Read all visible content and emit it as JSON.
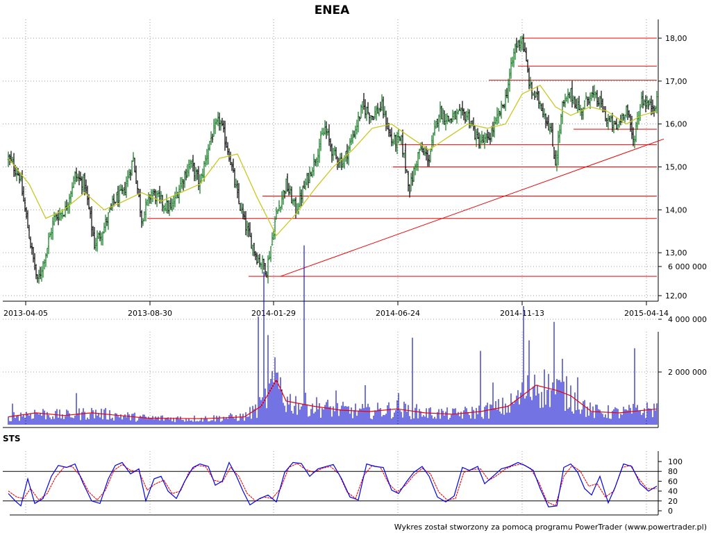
{
  "title": "ENEA",
  "footer": "Wykres został stworzony za pomocą programu PowerTrader (www.powertrader.pl)",
  "colors": {
    "price_bar_up": "#0a7a1a",
    "price_bar_down": "#000000",
    "moving_average": "#c8c820",
    "support_lines": "#ee0000",
    "volume_bars": "#0000cc",
    "volume_average": "#ee0000",
    "sts_fast": "#0000ee",
    "sts_slow": "#ee0000",
    "grid": "#999999"
  },
  "chart_data": [
    {
      "type": "candlestick-bars",
      "panel": "price",
      "title": "ENEA",
      "x_tick_labels": [
        "2013-04-05",
        "2013-08-30",
        "2014-01-29",
        "2014-06-24",
        "2014-11-13",
        "2015-04-14"
      ],
      "y_tick_labels": [
        "12,00",
        "13,00",
        "14,00",
        "15,00",
        "16,00",
        "17,00",
        "18,00"
      ],
      "ylim": [
        12.0,
        18.3
      ],
      "grid": true,
      "close_path": [
        [
          0,
          15.2
        ],
        [
          8,
          14.8
        ],
        [
          16,
          13.2
        ],
        [
          21,
          12.3
        ],
        [
          27,
          13.0
        ],
        [
          33,
          13.8
        ],
        [
          41,
          14.0
        ],
        [
          48,
          14.8
        ],
        [
          55,
          14.6
        ],
        [
          62,
          13.2
        ],
        [
          69,
          13.6
        ],
        [
          76,
          14.2
        ],
        [
          83,
          14.4
        ],
        [
          90,
          15.2
        ],
        [
          96,
          13.8
        ],
        [
          103,
          14.4
        ],
        [
          110,
          14.2
        ],
        [
          117,
          14.0
        ],
        [
          124,
          14.6
        ],
        [
          131,
          15.1
        ],
        [
          138,
          14.6
        ],
        [
          145,
          15.6
        ],
        [
          152,
          16.1
        ],
        [
          159,
          15.3
        ],
        [
          165,
          14.3
        ],
        [
          172,
          13.5
        ],
        [
          179,
          12.9
        ],
        [
          186,
          12.6
        ],
        [
          193,
          13.9
        ],
        [
          200,
          14.6
        ],
        [
          207,
          14.0
        ],
        [
          214,
          14.6
        ],
        [
          221,
          15.2
        ],
        [
          228,
          15.9
        ],
        [
          234,
          15.3
        ],
        [
          241,
          15.1
        ],
        [
          248,
          15.7
        ],
        [
          255,
          16.4
        ],
        [
          262,
          16.2
        ],
        [
          269,
          16.4
        ],
        [
          276,
          15.6
        ],
        [
          283,
          15.6
        ],
        [
          289,
          14.5
        ],
        [
          296,
          15.4
        ],
        [
          303,
          15.2
        ],
        [
          310,
          16.3
        ],
        [
          317,
          16.1
        ],
        [
          324,
          16.2
        ],
        [
          331,
          16.2
        ],
        [
          338,
          15.6
        ],
        [
          345,
          15.6
        ],
        [
          352,
          16.1
        ],
        [
          358,
          16.6
        ],
        [
          365,
          17.8
        ],
        [
          370,
          18.0
        ],
        [
          376,
          16.8
        ],
        [
          383,
          16.5
        ],
        [
          390,
          15.9
        ],
        [
          394,
          15.1
        ],
        [
          399,
          16.4
        ],
        [
          405,
          16.7
        ],
        [
          412,
          16.3
        ],
        [
          419,
          16.7
        ],
        [
          426,
          16.5
        ],
        [
          431,
          16.1
        ],
        [
          438,
          15.9
        ],
        [
          445,
          16.4
        ],
        [
          450,
          15.6
        ],
        [
          456,
          16.6
        ],
        [
          462,
          16.4
        ],
        [
          467,
          16.5
        ]
      ],
      "moving_average_path": [
        [
          0,
          15.2
        ],
        [
          15,
          14.6
        ],
        [
          27,
          13.8
        ],
        [
          40,
          14.0
        ],
        [
          55,
          14.4
        ],
        [
          69,
          14.0
        ],
        [
          83,
          14.2
        ],
        [
          96,
          14.4
        ],
        [
          110,
          14.2
        ],
        [
          124,
          14.4
        ],
        [
          138,
          14.6
        ],
        [
          152,
          15.2
        ],
        [
          165,
          15.3
        ],
        [
          179,
          14.3
        ],
        [
          193,
          13.4
        ],
        [
          207,
          13.9
        ],
        [
          221,
          14.5
        ],
        [
          234,
          15.0
        ],
        [
          248,
          15.4
        ],
        [
          262,
          15.9
        ],
        [
          276,
          16.0
        ],
        [
          289,
          15.7
        ],
        [
          303,
          15.4
        ],
        [
          317,
          15.7
        ],
        [
          331,
          16.0
        ],
        [
          345,
          15.9
        ],
        [
          358,
          16.0
        ],
        [
          370,
          16.7
        ],
        [
          383,
          16.9
        ],
        [
          394,
          16.4
        ],
        [
          405,
          16.2
        ],
        [
          419,
          16.4
        ],
        [
          431,
          16.3
        ],
        [
          445,
          16.0
        ],
        [
          456,
          16.2
        ],
        [
          467,
          16.3
        ]
      ],
      "support_resistance_lines": [
        {
          "from": 173,
          "to": 467,
          "value": 12.45
        },
        {
          "from": 100,
          "to": 467,
          "value": 13.8
        },
        {
          "from": 183,
          "to": 467,
          "value": 14.32
        },
        {
          "from": 277,
          "to": 467,
          "value": 15.0
        },
        {
          "from": 281,
          "to": 467,
          "value": 15.52
        },
        {
          "from": 407,
          "to": 467,
          "value": 15.88
        },
        {
          "from": 367,
          "to": 467,
          "value": 17.35
        },
        {
          "from": 346,
          "to": 467,
          "value": 17.02
        },
        {
          "from": 370,
          "to": 467,
          "value": 18.0
        }
      ],
      "trendline": {
        "from": [
          196,
          12.45
        ],
        "to": [
          472,
          15.65
        ]
      }
    },
    {
      "type": "bar",
      "panel": "volume",
      "y_tick_labels": [
        "2 000 000",
        "4 000 000",
        "6 000 000"
      ],
      "ylim": [
        0,
        7000000
      ],
      "baseline_volume": 250000,
      "volume_spikes": [
        [
          3,
          800000
        ],
        [
          49,
          1200000
        ],
        [
          180,
          4100000
        ],
        [
          184,
          5800000
        ],
        [
          187,
          3400000
        ],
        [
          196,
          1800000
        ],
        [
          213,
          6800000
        ],
        [
          236,
          1300000
        ],
        [
          257,
          1500000
        ],
        [
          281,
          1200000
        ],
        [
          291,
          3300000
        ],
        [
          340,
          2800000
        ],
        [
          349,
          1600000
        ],
        [
          371,
          4500000
        ],
        [
          375,
          3200000
        ],
        [
          379,
          1900000
        ],
        [
          393,
          3900000
        ],
        [
          399,
          2500000
        ],
        [
          410,
          1800000
        ],
        [
          451,
          2900000
        ]
      ],
      "average_path": [
        [
          0,
          300000
        ],
        [
          20,
          450000
        ],
        [
          40,
          350000
        ],
        [
          60,
          450000
        ],
        [
          80,
          350000
        ],
        [
          100,
          250000
        ],
        [
          140,
          230000
        ],
        [
          170,
          300000
        ],
        [
          182,
          700000
        ],
        [
          193,
          1700000
        ],
        [
          200,
          900000
        ],
        [
          220,
          700000
        ],
        [
          240,
          550000
        ],
        [
          260,
          500000
        ],
        [
          280,
          600000
        ],
        [
          300,
          450000
        ],
        [
          320,
          400000
        ],
        [
          340,
          500000
        ],
        [
          360,
          700000
        ],
        [
          380,
          1500000
        ],
        [
          395,
          1300000
        ],
        [
          405,
          1100000
        ],
        [
          420,
          500000
        ],
        [
          440,
          450000
        ],
        [
          467,
          600000
        ]
      ]
    },
    {
      "type": "line",
      "panel": "oscillator",
      "name": "STS",
      "y_tick_labels": [
        "0",
        "20",
        "40",
        "60",
        "80",
        "100"
      ],
      "ylim": [
        0,
        100
      ],
      "levels": [
        20,
        80
      ],
      "fast_path": [
        [
          0,
          35
        ],
        [
          5,
          20
        ],
        [
          9,
          10
        ],
        [
          14,
          65
        ],
        [
          19,
          15
        ],
        [
          25,
          25
        ],
        [
          31,
          70
        ],
        [
          36,
          92
        ],
        [
          42,
          88
        ],
        [
          48,
          95
        ],
        [
          54,
          55
        ],
        [
          60,
          20
        ],
        [
          66,
          15
        ],
        [
          72,
          65
        ],
        [
          77,
          92
        ],
        [
          82,
          98
        ],
        [
          88,
          75
        ],
        [
          94,
          85
        ],
        [
          99,
          20
        ],
        [
          105,
          65
        ],
        [
          110,
          70
        ],
        [
          115,
          40
        ],
        [
          121,
          25
        ],
        [
          127,
          60
        ],
        [
          133,
          88
        ],
        [
          138,
          95
        ],
        [
          144,
          90
        ],
        [
          149,
          52
        ],
        [
          154,
          60
        ],
        [
          159,
          98
        ],
        [
          164,
          72
        ],
        [
          169,
          40
        ],
        [
          174,
          12
        ],
        [
          181,
          25
        ],
        [
          187,
          32
        ],
        [
          193,
          18
        ],
        [
          199,
          78
        ],
        [
          205,
          98
        ],
        [
          211,
          96
        ],
        [
          217,
          70
        ],
        [
          223,
          85
        ],
        [
          229,
          90
        ],
        [
          234,
          94
        ],
        [
          240,
          65
        ],
        [
          246,
          28
        ],
        [
          252,
          22
        ],
        [
          258,
          95
        ],
        [
          264,
          90
        ],
        [
          270,
          88
        ],
        [
          276,
          42
        ],
        [
          281,
          35
        ],
        [
          287,
          60
        ],
        [
          292,
          78
        ],
        [
          298,
          90
        ],
        [
          303,
          70
        ],
        [
          309,
          28
        ],
        [
          315,
          18
        ],
        [
          321,
          30
        ],
        [
          327,
          88
        ],
        [
          332,
          82
        ],
        [
          338,
          90
        ],
        [
          343,
          55
        ],
        [
          349,
          70
        ],
        [
          355,
          85
        ],
        [
          361,
          90
        ],
        [
          367,
          98
        ],
        [
          372,
          92
        ],
        [
          378,
          82
        ],
        [
          383,
          45
        ],
        [
          389,
          8
        ],
        [
          395,
          10
        ],
        [
          400,
          88
        ],
        [
          405,
          95
        ],
        [
          410,
          78
        ],
        [
          415,
          45
        ],
        [
          420,
          32
        ],
        [
          426,
          70
        ],
        [
          432,
          16
        ],
        [
          437,
          48
        ],
        [
          443,
          95
        ],
        [
          449,
          90
        ],
        [
          455,
          55
        ],
        [
          461,
          40
        ],
        [
          467,
          50
        ]
      ],
      "slow_path": [
        [
          0,
          40
        ],
        [
          6,
          28
        ],
        [
          11,
          25
        ],
        [
          16,
          45
        ],
        [
          22,
          22
        ],
        [
          28,
          35
        ],
        [
          34,
          68
        ],
        [
          40,
          88
        ],
        [
          46,
          90
        ],
        [
          52,
          70
        ],
        [
          58,
          38
        ],
        [
          64,
          22
        ],
        [
          70,
          42
        ],
        [
          76,
          82
        ],
        [
          82,
          94
        ],
        [
          88,
          82
        ],
        [
          94,
          80
        ],
        [
          100,
          42
        ],
        [
          106,
          55
        ],
        [
          112,
          62
        ],
        [
          118,
          35
        ],
        [
          124,
          40
        ],
        [
          130,
          78
        ],
        [
          136,
          92
        ],
        [
          142,
          90
        ],
        [
          148,
          62
        ],
        [
          154,
          58
        ],
        [
          160,
          88
        ],
        [
          166,
          70
        ],
        [
          172,
          35
        ],
        [
          178,
          20
        ],
        [
          184,
          28
        ],
        [
          190,
          25
        ],
        [
          196,
          45
        ],
        [
          202,
          88
        ],
        [
          208,
          96
        ],
        [
          214,
          84
        ],
        [
          220,
          78
        ],
        [
          226,
          86
        ],
        [
          232,
          90
        ],
        [
          238,
          75
        ],
        [
          244,
          38
        ],
        [
          250,
          25
        ],
        [
          256,
          72
        ],
        [
          262,
          92
        ],
        [
          268,
          88
        ],
        [
          274,
          55
        ],
        [
          280,
          38
        ],
        [
          286,
          52
        ],
        [
          292,
          72
        ],
        [
          298,
          86
        ],
        [
          304,
          75
        ],
        [
          310,
          38
        ],
        [
          316,
          22
        ],
        [
          322,
          25
        ],
        [
          328,
          78
        ],
        [
          334,
          84
        ],
        [
          340,
          85
        ],
        [
          346,
          62
        ],
        [
          352,
          72
        ],
        [
          358,
          85
        ],
        [
          364,
          92
        ],
        [
          370,
          95
        ],
        [
          376,
          86
        ],
        [
          382,
          58
        ],
        [
          388,
          18
        ],
        [
          394,
          10
        ],
        [
          400,
          70
        ],
        [
          406,
          92
        ],
        [
          412,
          80
        ],
        [
          418,
          50
        ],
        [
          424,
          55
        ],
        [
          430,
          28
        ],
        [
          436,
          40
        ],
        [
          442,
          88
        ],
        [
          448,
          92
        ],
        [
          454,
          65
        ],
        [
          460,
          45
        ],
        [
          467,
          45
        ]
      ]
    }
  ]
}
